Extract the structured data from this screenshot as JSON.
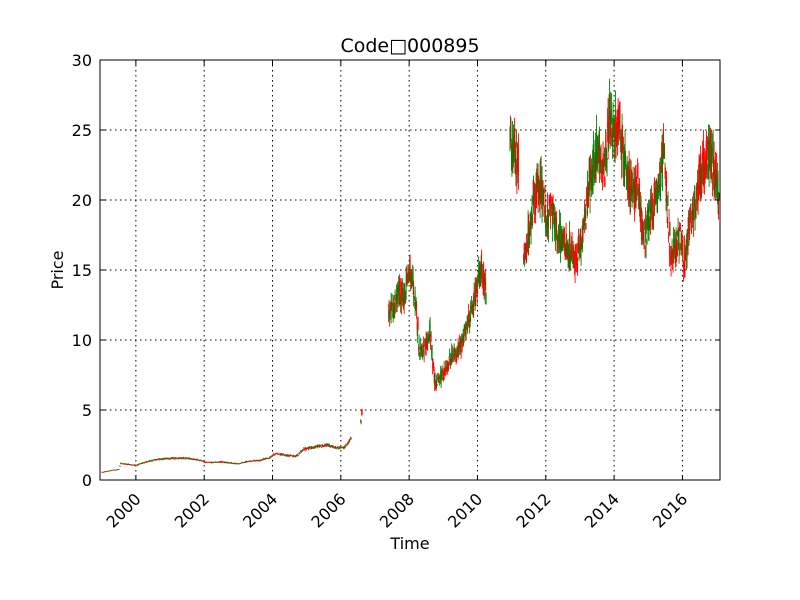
{
  "chart_data": {
    "type": "candlestick",
    "title": "Code□000895",
    "xlabel": "Time",
    "ylabel": "Price",
    "xlim": [
      1998.95,
      2017.1
    ],
    "ylim": [
      0,
      30
    ],
    "xticks": [
      2000,
      2002,
      2004,
      2006,
      2008,
      2010,
      2012,
      2014,
      2016
    ],
    "xtick_labels": [
      "2000",
      "2002",
      "2004",
      "2006",
      "2008",
      "2010",
      "2012",
      "2014",
      "2016"
    ],
    "xtick_rotation_deg": 45,
    "yticks": [
      0,
      5,
      10,
      15,
      20,
      25,
      30
    ],
    "ytick_labels": [
      "0",
      "5",
      "10",
      "15",
      "20",
      "25",
      "30"
    ],
    "grid": true,
    "up_color": "#ff0000",
    "down_color": "#008000",
    "price_path": [
      [
        1999.0,
        0.55
      ],
      [
        1999.3,
        0.7
      ],
      [
        1999.5,
        0.75
      ],
      [
        1999.55,
        1.2
      ],
      [
        1999.8,
        1.1
      ],
      [
        2000.0,
        1.05
      ],
      [
        2000.3,
        1.3
      ],
      [
        2000.6,
        1.45
      ],
      [
        2001.0,
        1.55
      ],
      [
        2001.5,
        1.55
      ],
      [
        2001.8,
        1.45
      ],
      [
        2002.0,
        1.3
      ],
      [
        2002.2,
        1.25
      ],
      [
        2002.5,
        1.3
      ],
      [
        2002.8,
        1.2
      ],
      [
        2003.0,
        1.15
      ],
      [
        2003.2,
        1.3
      ],
      [
        2003.6,
        1.4
      ],
      [
        2003.9,
        1.6
      ],
      [
        2004.1,
        1.9
      ],
      [
        2004.4,
        1.75
      ],
      [
        2004.7,
        1.7
      ],
      [
        2004.9,
        2.2
      ],
      [
        2005.3,
        2.4
      ],
      [
        2005.6,
        2.5
      ],
      [
        2005.9,
        2.3
      ],
      [
        2006.1,
        2.3
      ],
      [
        2006.3,
        3.0
      ],
      null,
      [
        2006.58,
        4.2
      ],
      [
        2006.62,
        5.0
      ],
      null,
      [
        2007.4,
        12.0
      ],
      [
        2007.55,
        12.5
      ],
      [
        2007.7,
        13.5
      ],
      [
        2007.85,
        13.0
      ],
      [
        2008.0,
        15.0
      ],
      [
        2008.15,
        13.5
      ],
      [
        2008.3,
        9.0
      ],
      [
        2008.45,
        9.5
      ],
      [
        2008.6,
        10.5
      ],
      [
        2008.75,
        7.0
      ],
      [
        2008.9,
        7.2
      ],
      [
        2009.1,
        8.0
      ],
      [
        2009.3,
        9.0
      ],
      [
        2009.5,
        9.5
      ],
      [
        2009.7,
        11.0
      ],
      [
        2009.85,
        12.5
      ],
      [
        2010.0,
        14.0
      ],
      [
        2010.1,
        15.0
      ],
      [
        2010.25,
        13.5
      ],
      null,
      [
        2010.95,
        24.5
      ],
      [
        2011.1,
        23.0
      ],
      [
        2011.2,
        22.5
      ],
      null,
      [
        2011.35,
        16.0
      ],
      [
        2011.5,
        17.5
      ],
      [
        2011.7,
        20.5
      ],
      [
        2011.85,
        21.0
      ],
      [
        2012.0,
        18.5
      ],
      [
        2012.15,
        19.5
      ],
      [
        2012.3,
        18.0
      ],
      [
        2012.5,
        17.0
      ],
      [
        2012.7,
        16.5
      ],
      [
        2012.9,
        15.5
      ],
      [
        2013.1,
        18.0
      ],
      [
        2013.3,
        21.5
      ],
      [
        2013.5,
        23.5
      ],
      [
        2013.7,
        22.0
      ],
      [
        2013.85,
        26.0
      ],
      [
        2014.0,
        25.0
      ],
      [
        2014.15,
        25.5
      ],
      [
        2014.3,
        22.5
      ],
      [
        2014.5,
        20.5
      ],
      [
        2014.7,
        21.0
      ],
      [
        2014.85,
        17.0
      ],
      [
        2015.0,
        18.5
      ],
      [
        2015.15,
        19.5
      ],
      [
        2015.35,
        21.5
      ],
      [
        2015.45,
        23.5
      ],
      [
        2015.55,
        20.0
      ],
      [
        2015.65,
        16.0
      ],
      [
        2015.8,
        16.5
      ],
      [
        2015.9,
        17.5
      ],
      [
        2016.05,
        15.5
      ],
      [
        2016.2,
        18.0
      ],
      [
        2016.35,
        19.5
      ],
      [
        2016.5,
        21.5
      ],
      [
        2016.65,
        23.0
      ],
      [
        2016.8,
        23.5
      ],
      [
        2016.95,
        21.5
      ],
      [
        2017.08,
        20.5
      ]
    ]
  }
}
